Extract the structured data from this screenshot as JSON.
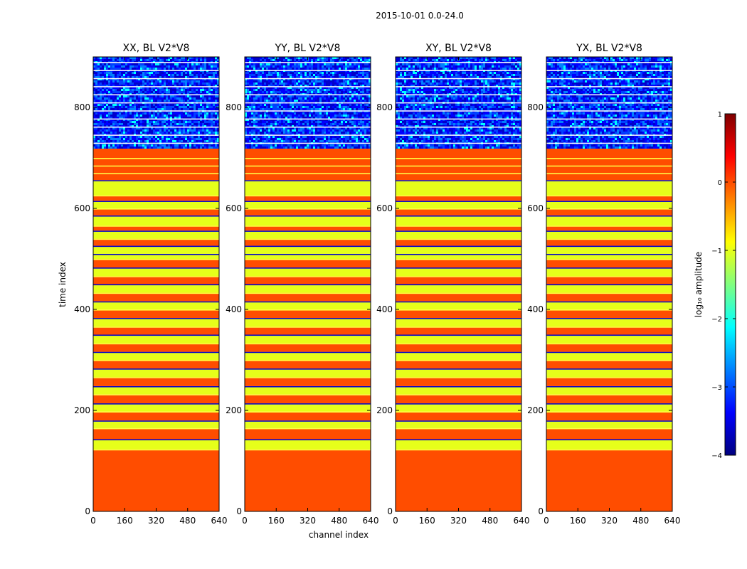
{
  "figure": {
    "suptitle": "2015-10-01 0.0-24.0",
    "xlabel": "channel index",
    "ylabel": "time index"
  },
  "chart_data": [
    {
      "type": "heatmap",
      "title": "XX, BL V2*V8",
      "xlim": [
        0,
        640
      ],
      "ylim": [
        0,
        900
      ],
      "xticks": [
        0,
        160,
        320,
        480,
        640
      ],
      "yticks": [
        0,
        200,
        400,
        600,
        800
      ],
      "noise_start": 722
    },
    {
      "type": "heatmap",
      "title": "YY, BL V2*V8",
      "xlim": [
        0,
        640
      ],
      "ylim": [
        0,
        900
      ],
      "xticks": [
        0,
        160,
        320,
        480,
        640
      ],
      "yticks": [
        0,
        200,
        400,
        600,
        800
      ],
      "noise_start": 722
    },
    {
      "type": "heatmap",
      "title": "XY, BL V2*V8",
      "xlim": [
        0,
        640
      ],
      "ylim": [
        0,
        900
      ],
      "xticks": [
        0,
        160,
        320,
        480,
        640
      ],
      "yticks": [
        0,
        200,
        400,
        600,
        800
      ],
      "noise_start": 722
    },
    {
      "type": "heatmap",
      "title": "YX, BL V2*V8",
      "xlim": [
        0,
        640
      ],
      "ylim": [
        0,
        900
      ],
      "xticks": [
        0,
        160,
        320,
        480,
        640
      ],
      "yticks": [
        0,
        200,
        400,
        600,
        800
      ],
      "noise_start": 722
    }
  ],
  "bands": [
    {
      "from": 0,
      "to": 123,
      "level": 0.0
    },
    {
      "from": 123,
      "to": 143,
      "level": -1.0
    },
    {
      "from": 143,
      "to": 165,
      "level": 0.0
    },
    {
      "from": 165,
      "to": 180,
      "level": -1.0
    },
    {
      "from": 180,
      "to": 198,
      "level": 0.0
    },
    {
      "from": 198,
      "to": 214,
      "level": -1.0
    },
    {
      "from": 214,
      "to": 232,
      "level": 0.0
    },
    {
      "from": 232,
      "to": 248,
      "level": -1.0
    },
    {
      "from": 248,
      "to": 266,
      "level": 0.0
    },
    {
      "from": 266,
      "to": 283,
      "level": -1.0
    },
    {
      "from": 283,
      "to": 300,
      "level": 0.0
    },
    {
      "from": 300,
      "to": 316,
      "level": -1.0
    },
    {
      "from": 316,
      "to": 333,
      "level": 0.0
    },
    {
      "from": 333,
      "to": 350,
      "level": -1.0
    },
    {
      "from": 350,
      "to": 366,
      "level": 0.0
    },
    {
      "from": 366,
      "to": 383,
      "level": -1.0
    },
    {
      "from": 383,
      "to": 400,
      "level": 0.0
    },
    {
      "from": 400,
      "to": 416,
      "level": -1.0
    },
    {
      "from": 416,
      "to": 433,
      "level": 0.0
    },
    {
      "from": 433,
      "to": 450,
      "level": -1.0
    },
    {
      "from": 450,
      "to": 466,
      "level": 0.0
    },
    {
      "from": 466,
      "to": 483,
      "level": -1.0
    },
    {
      "from": 483,
      "to": 500,
      "level": 0.0
    },
    {
      "from": 500,
      "to": 510,
      "level": -1.0
    },
    {
      "from": 510,
      "to": 526,
      "level": -1.0
    },
    {
      "from": 526,
      "to": 540,
      "level": 0.0
    },
    {
      "from": 540,
      "to": 556,
      "level": -1.0
    },
    {
      "from": 556,
      "to": 566,
      "level": 0.0
    },
    {
      "from": 566,
      "to": 586,
      "level": -1.0
    },
    {
      "from": 586,
      "to": 600,
      "level": 0.0
    },
    {
      "from": 600,
      "to": 615,
      "level": -1.0
    },
    {
      "from": 615,
      "to": 626,
      "level": 0.0
    },
    {
      "from": 626,
      "to": 656,
      "level": -1.0
    },
    {
      "from": 656,
      "to": 670,
      "level": 0.0
    },
    {
      "from": 670,
      "to": 685,
      "level": 0.0
    },
    {
      "from": 685,
      "to": 700,
      "level": 0.0
    },
    {
      "from": 700,
      "to": 722,
      "level": 0.0
    }
  ],
  "colorbar": {
    "label": "log₁₀ amplitude",
    "min": -4,
    "max": 1,
    "ticks": [
      -4,
      -3,
      -2,
      -1,
      0,
      1
    ],
    "colors": [
      "#00007f",
      "#0000ff",
      "#0080ff",
      "#00ffff",
      "#80ff80",
      "#ffff00",
      "#ff8000",
      "#ff0000",
      "#7f0000"
    ]
  }
}
